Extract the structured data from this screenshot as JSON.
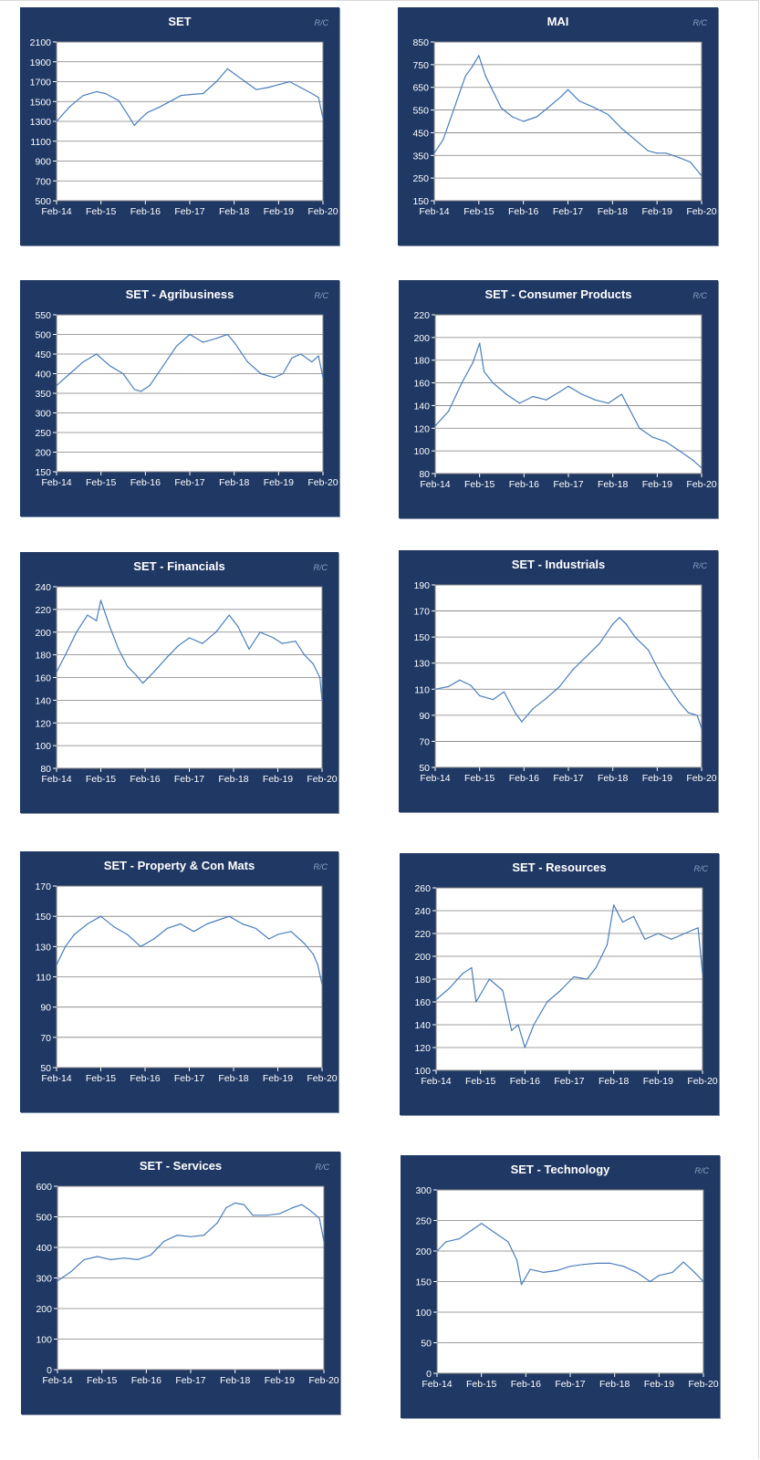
{
  "source_mark": "R/C",
  "chart_data": [
    {
      "type": "line",
      "title": "SET",
      "ylim": [
        500,
        2100
      ],
      "yticks": [
        500,
        700,
        900,
        1100,
        1300,
        1500,
        1700,
        1900,
        2100
      ],
      "xlabels": [
        "Feb-14",
        "Feb-15",
        "Feb-16",
        "Feb-17",
        "Feb-18",
        "Feb-19",
        "Feb-20"
      ],
      "x": [
        0,
        0.3,
        0.6,
        0.9,
        1.1,
        1.4,
        1.6,
        1.75,
        1.9,
        2.05,
        2.3,
        2.55,
        2.8,
        3.0,
        3.3,
        3.6,
        3.85,
        4.0,
        4.25,
        4.5,
        4.75,
        5.0,
        5.25,
        5.5,
        5.75,
        5.9,
        6.0
      ],
      "values": [
        1300,
        1450,
        1560,
        1600,
        1580,
        1510,
        1370,
        1260,
        1330,
        1390,
        1440,
        1500,
        1560,
        1570,
        1580,
        1700,
        1830,
        1780,
        1700,
        1620,
        1640,
        1670,
        1700,
        1640,
        1580,
        1540,
        1330
      ],
      "grid": true
    },
    {
      "type": "line",
      "title": "MAI",
      "ylim": [
        150,
        850
      ],
      "yticks": [
        150,
        250,
        350,
        450,
        550,
        650,
        750,
        850
      ],
      "xlabels": [
        "Feb-14",
        "Feb-15",
        "Feb-16",
        "Feb-17",
        "Feb-18",
        "Feb-19",
        "Feb-20"
      ],
      "x": [
        0,
        0.2,
        0.45,
        0.7,
        0.85,
        1.0,
        1.15,
        1.3,
        1.5,
        1.75,
        2.0,
        2.3,
        2.55,
        2.85,
        3.0,
        3.25,
        3.6,
        3.9,
        4.2,
        4.5,
        4.8,
        5.0,
        5.2,
        5.5,
        5.75,
        6.0
      ],
      "values": [
        360,
        420,
        560,
        700,
        740,
        790,
        700,
        640,
        560,
        520,
        500,
        520,
        560,
        610,
        640,
        590,
        560,
        530,
        470,
        420,
        370,
        360,
        360,
        340,
        320,
        260
      ],
      "grid": true
    },
    {
      "type": "line",
      "title": "SET - Agribusiness",
      "ylim": [
        150,
        550
      ],
      "yticks": [
        150,
        200,
        250,
        300,
        350,
        400,
        450,
        500,
        550
      ],
      "xlabels": [
        "Feb-14",
        "Feb-15",
        "Feb-16",
        "Feb-17",
        "Feb-18",
        "Feb-19",
        "Feb-20"
      ],
      "x": [
        0,
        0.3,
        0.6,
        0.9,
        1.2,
        1.5,
        1.75,
        1.9,
        2.1,
        2.4,
        2.7,
        3.0,
        3.3,
        3.6,
        3.85,
        4.0,
        4.3,
        4.6,
        4.9,
        5.1,
        5.3,
        5.5,
        5.75,
        5.9,
        6.0
      ],
      "values": [
        370,
        400,
        430,
        450,
        420,
        400,
        360,
        355,
        370,
        420,
        470,
        500,
        480,
        490,
        500,
        480,
        430,
        400,
        390,
        400,
        440,
        450,
        430,
        445,
        390
      ],
      "grid": true
    },
    {
      "type": "line",
      "title": "SET - Consumer Products",
      "ylim": [
        80,
        220
      ],
      "yticks": [
        80,
        100,
        120,
        140,
        160,
        180,
        200,
        220
      ],
      "xlabels": [
        "Feb-14",
        "Feb-15",
        "Feb-16",
        "Feb-17",
        "Feb-18",
        "Feb-19",
        "Feb-20"
      ],
      "x": [
        0,
        0.3,
        0.6,
        0.85,
        1.0,
        1.1,
        1.3,
        1.6,
        1.9,
        2.2,
        2.5,
        2.8,
        3.0,
        3.3,
        3.6,
        3.9,
        4.2,
        4.4,
        4.6,
        4.9,
        5.2,
        5.5,
        5.8,
        6.0
      ],
      "values": [
        122,
        135,
        160,
        178,
        195,
        170,
        160,
        150,
        142,
        148,
        145,
        152,
        157,
        150,
        145,
        142,
        150,
        135,
        120,
        112,
        108,
        100,
        92,
        85
      ],
      "grid": true
    },
    {
      "type": "line",
      "title": "SET - Financials",
      "ylim": [
        80,
        240
      ],
      "yticks": [
        80,
        100,
        120,
        140,
        160,
        180,
        200,
        220,
        240
      ],
      "xlabels": [
        "Feb-14",
        "Feb-15",
        "Feb-16",
        "Feb-17",
        "Feb-18",
        "Feb-19",
        "Feb-20"
      ],
      "x": [
        0,
        0.2,
        0.45,
        0.7,
        0.9,
        1.0,
        1.2,
        1.4,
        1.6,
        1.8,
        1.95,
        2.2,
        2.5,
        2.75,
        3.0,
        3.3,
        3.6,
        3.9,
        4.1,
        4.35,
        4.6,
        4.9,
        5.1,
        5.4,
        5.6,
        5.8,
        5.95,
        6.0
      ],
      "values": [
        165,
        180,
        200,
        215,
        210,
        228,
        205,
        185,
        170,
        162,
        155,
        165,
        178,
        188,
        195,
        190,
        200,
        215,
        205,
        185,
        200,
        195,
        190,
        192,
        180,
        172,
        160,
        140
      ],
      "grid": true
    },
    {
      "type": "line",
      "title": "SET - Industrials",
      "ylim": [
        50,
        190
      ],
      "yticks": [
        50,
        70,
        90,
        110,
        130,
        150,
        170,
        190
      ],
      "xlabels": [
        "Feb-14",
        "Feb-15",
        "Feb-16",
        "Feb-17",
        "Feb-18",
        "Feb-19",
        "Feb-20"
      ],
      "x": [
        0,
        0.3,
        0.55,
        0.8,
        1.0,
        1.3,
        1.55,
        1.8,
        1.95,
        2.2,
        2.5,
        2.8,
        3.1,
        3.4,
        3.7,
        4.0,
        4.15,
        4.3,
        4.5,
        4.8,
        5.1,
        5.3,
        5.5,
        5.7,
        5.9,
        6.0
      ],
      "values": [
        110,
        112,
        117,
        113,
        105,
        102,
        108,
        92,
        85,
        95,
        103,
        112,
        125,
        135,
        145,
        160,
        165,
        160,
        150,
        140,
        120,
        110,
        100,
        92,
        90,
        80
      ],
      "grid": true
    },
    {
      "type": "line",
      "title": "SET - Property & Con Mats",
      "ylim": [
        50,
        170
      ],
      "yticks": [
        50,
        70,
        90,
        110,
        130,
        150,
        170
      ],
      "xlabels": [
        "Feb-14",
        "Feb-15",
        "Feb-16",
        "Feb-17",
        "Feb-18",
        "Feb-19",
        "Feb-20"
      ],
      "x": [
        0,
        0.2,
        0.4,
        0.7,
        1.0,
        1.3,
        1.6,
        1.9,
        2.2,
        2.5,
        2.8,
        3.1,
        3.4,
        3.7,
        3.9,
        4.2,
        4.5,
        4.8,
        5.0,
        5.3,
        5.6,
        5.8,
        5.9,
        6.0
      ],
      "values": [
        118,
        130,
        138,
        145,
        150,
        143,
        138,
        130,
        135,
        142,
        145,
        140,
        145,
        148,
        150,
        145,
        142,
        135,
        138,
        140,
        132,
        125,
        118,
        105
      ],
      "grid": true
    },
    {
      "type": "line",
      "title": "SET - Resources",
      "ylim": [
        100,
        260
      ],
      "yticks": [
        100,
        120,
        140,
        160,
        180,
        200,
        220,
        240,
        260
      ],
      "xlabels": [
        "Feb-14",
        "Feb-15",
        "Feb-16",
        "Feb-17",
        "Feb-18",
        "Feb-19",
        "Feb-20"
      ],
      "x": [
        0,
        0.3,
        0.6,
        0.8,
        0.9,
        1.2,
        1.5,
        1.7,
        1.85,
        2.0,
        2.2,
        2.5,
        2.8,
        3.1,
        3.4,
        3.6,
        3.85,
        4.0,
        4.2,
        4.45,
        4.7,
        5.0,
        5.3,
        5.6,
        5.9,
        6.0
      ],
      "values": [
        162,
        172,
        185,
        190,
        160,
        180,
        170,
        135,
        140,
        120,
        140,
        160,
        170,
        182,
        180,
        190,
        210,
        245,
        230,
        235,
        215,
        220,
        215,
        220,
        225,
        185
      ],
      "grid": true
    },
    {
      "type": "line",
      "title": "SET - Services",
      "ylim": [
        0,
        600
      ],
      "yticks": [
        0,
        100,
        200,
        300,
        400,
        500,
        600
      ],
      "xlabels": [
        "Feb-14",
        "Feb-15",
        "Feb-16",
        "Feb-17",
        "Feb-18",
        "Feb-19",
        "Feb-20"
      ],
      "x": [
        0,
        0.3,
        0.6,
        0.9,
        1.2,
        1.5,
        1.8,
        2.1,
        2.4,
        2.7,
        3.0,
        3.3,
        3.6,
        3.8,
        4.0,
        4.2,
        4.4,
        4.7,
        5.0,
        5.3,
        5.5,
        5.7,
        5.9,
        6.0
      ],
      "values": [
        290,
        320,
        360,
        370,
        360,
        365,
        360,
        375,
        420,
        440,
        435,
        440,
        480,
        530,
        545,
        540,
        505,
        505,
        510,
        530,
        540,
        520,
        495,
        420
      ],
      "grid": true
    },
    {
      "type": "line",
      "title": "SET - Technology",
      "ylim": [
        0,
        300
      ],
      "yticks": [
        0,
        50,
        100,
        150,
        200,
        250,
        300
      ],
      "xlabels": [
        "Feb-14",
        "Feb-15",
        "Feb-16",
        "Feb-17",
        "Feb-18",
        "Feb-19",
        "Feb-20"
      ],
      "x": [
        0,
        0.2,
        0.5,
        0.8,
        1.0,
        1.3,
        1.6,
        1.8,
        1.9,
        2.1,
        2.4,
        2.7,
        3.0,
        3.3,
        3.6,
        3.9,
        4.2,
        4.5,
        4.8,
        5.0,
        5.3,
        5.55,
        5.8,
        6.0
      ],
      "values": [
        200,
        215,
        220,
        235,
        245,
        230,
        215,
        185,
        145,
        170,
        165,
        168,
        175,
        178,
        180,
        180,
        175,
        165,
        150,
        160,
        165,
        182,
        165,
        150
      ],
      "grid": true
    }
  ]
}
